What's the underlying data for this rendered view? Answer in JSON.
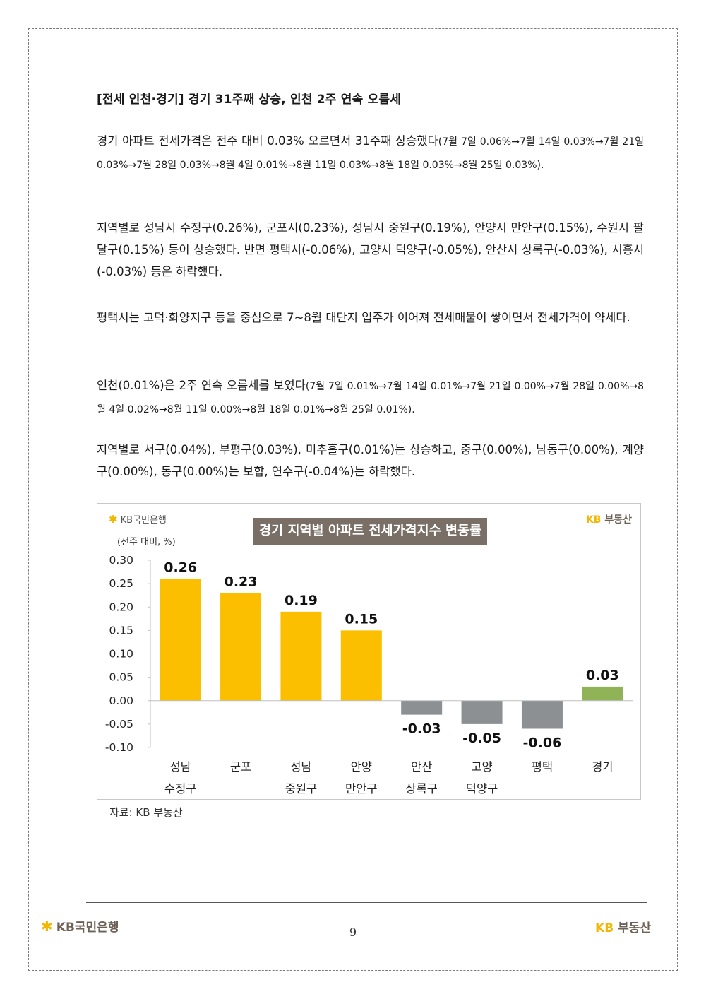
{
  "heading": "[전세 인천·경기] 경기 31주째 상승, 인천 2주 연속 오름세",
  "paragraphs": {
    "p1_main": "경기 아파트 전세가격은 전주 대비 0.03% 오르면서 31주째 상승했다",
    "p1_detail": "(7월 7일 0.06%→7월 14일 0.03%→7월 21일 0.03%→7월 28일 0.03%→8월 4일 0.01%→8월 11일 0.03%→8월 18일 0.03%→8월 25일 0.03%).",
    "p2": "지역별로 성남시 수정구(0.26%), 군포시(0.23%), 성남시 중원구(0.19%), 안양시 만안구(0.15%), 수원시 팔달구(0.15%) 등이 상승했다. 반면 평택시(-0.06%), 고양시 덕양구(-0.05%), 안산시 상록구(-0.03%), 시흥시(-0.03%) 등은 하락했다.",
    "p3": "평택시는 고덕·화양지구 등을 중심으로 7~8월 대단지 입주가 이어져 전세매물이 쌓이면서 전세가격이 약세다.",
    "p4_main": "인천(0.01%)은 2주 연속 오름세를 보였다",
    "p4_detail": "(7월 7일 0.01%→7월 14일 0.01%→7월 21일 0.00%→7월 28일 0.00%→8월 4일 0.02%→8월 11일 0.00%→8월 18일 0.01%→8월 25일 0.01%).",
    "p5": "지역별로 서구(0.04%), 부평구(0.03%), 미추홀구(0.01%)는 상승하고, 중구(0.00%), 남동구(0.00%), 계양구(0.00%), 동구(0.00%)는 보합, 연수구(-0.04%)는 하락했다."
  },
  "chart_data": {
    "type": "bar",
    "title": "경기 지역별 아파트 전세가격지수 변동률",
    "unit_label": "(전주 대비, %)",
    "categories": [
      [
        "성남",
        "수정구"
      ],
      [
        "군포",
        ""
      ],
      [
        "성남",
        "중원구"
      ],
      [
        "안양",
        "만안구"
      ],
      [
        "안산",
        "상록구"
      ],
      [
        "고양",
        "덕양구"
      ],
      [
        "평택",
        ""
      ],
      [
        "경기",
        ""
      ]
    ],
    "values": [
      0.26,
      0.23,
      0.19,
      0.15,
      -0.03,
      -0.05,
      -0.06,
      0.03
    ],
    "value_labels": [
      "0.26",
      "0.23",
      "0.19",
      "0.15",
      "-0.03",
      "-0.05",
      "-0.06",
      "0.03"
    ],
    "ylim": [
      -0.1,
      0.3
    ],
    "yticks": [
      "0.30",
      "0.25",
      "0.20",
      "0.15",
      "0.10",
      "0.05",
      "0.00",
      "-0.05",
      "-0.10"
    ],
    "grid": false,
    "colors": {
      "positive": "#fbbf00",
      "negative": "#8c9093",
      "total": "#8fb356"
    }
  },
  "logos": {
    "bank_text": "KB국민은행",
    "realty_k": "KB",
    "realty_text": "부동산"
  },
  "source": "자료: KB 부동산",
  "footer": {
    "left_text": "KB국민은행",
    "page": "9",
    "right_k": "KB",
    "right_text": "부동산"
  }
}
